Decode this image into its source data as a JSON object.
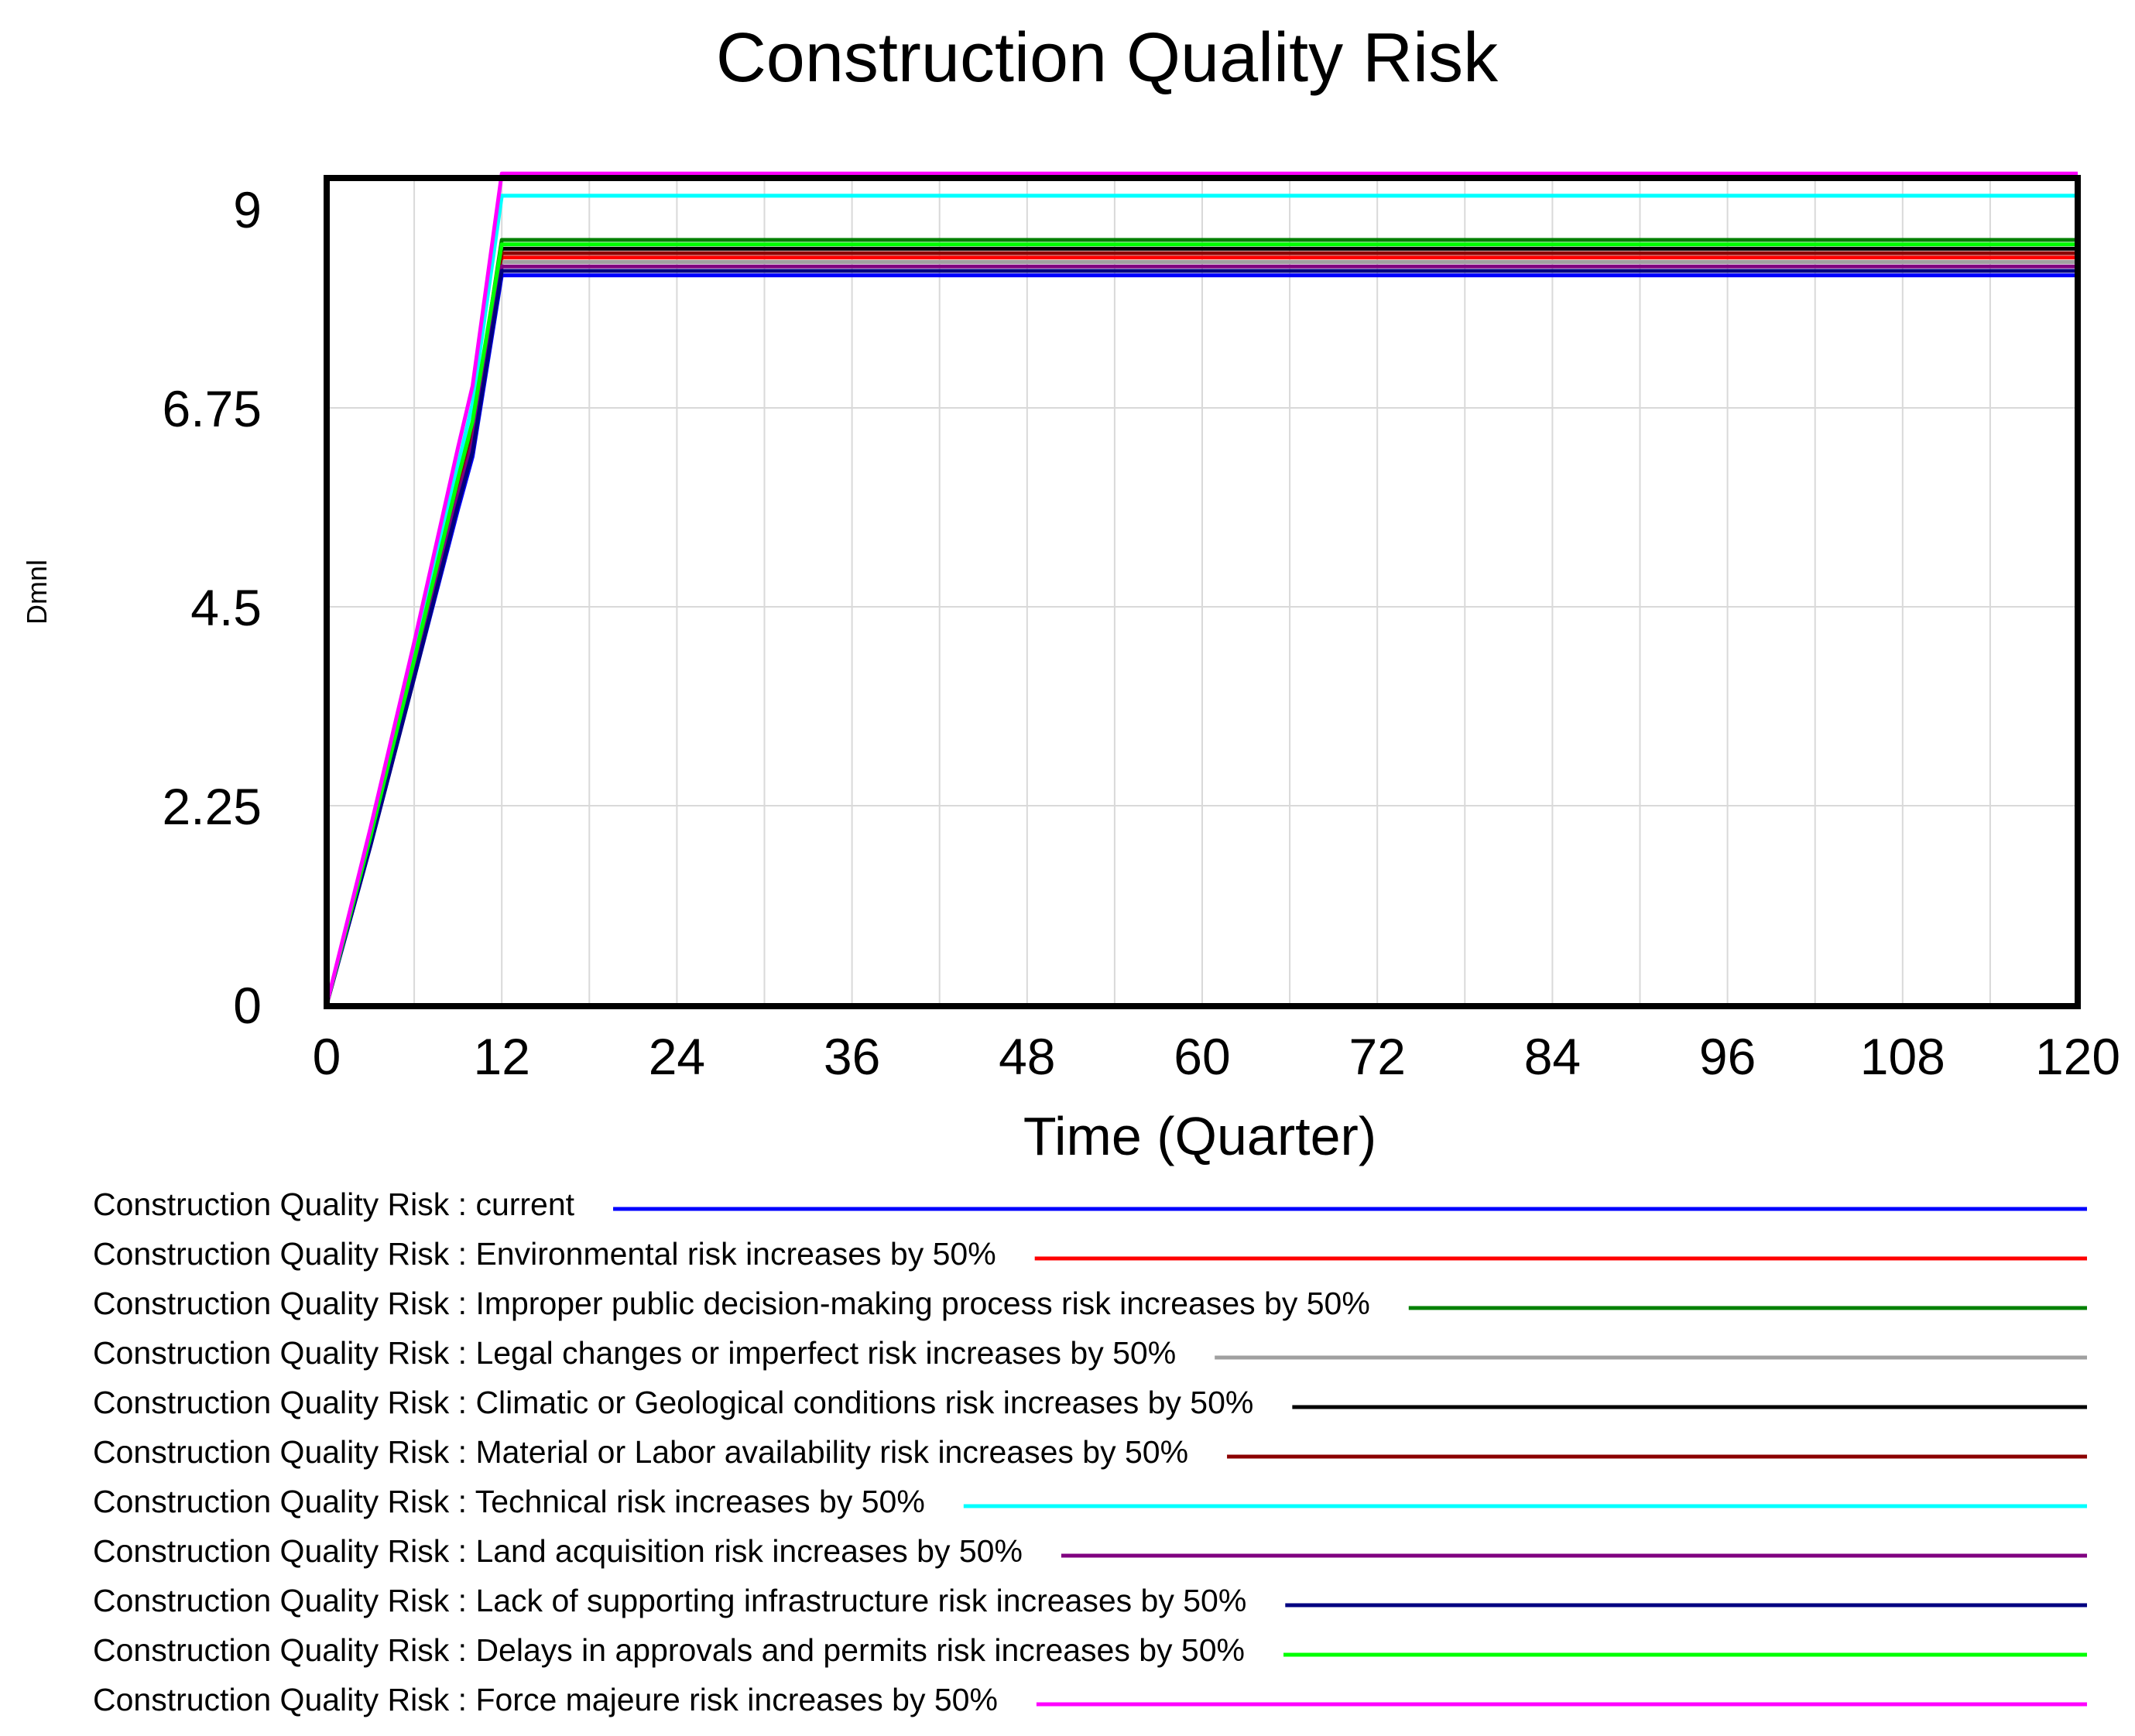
{
  "chart_data": {
    "type": "line",
    "title": "Construction Quality Risk",
    "xlabel": "Time (Quarter)",
    "ylabel": "Dmnl",
    "xlim": [
      0,
      120
    ],
    "ylim": [
      0,
      9
    ],
    "x_ticks": [
      0,
      12,
      24,
      36,
      48,
      60,
      72,
      84,
      96,
      108,
      120
    ],
    "y_ticks": [
      0,
      2.25,
      4.5,
      6.75,
      9
    ],
    "y_tick_labels": [
      "0",
      "2.25",
      "4.5",
      "6.75",
      "9"
    ],
    "x": [
      0,
      3,
      6,
      9,
      10,
      12,
      120
    ],
    "series": [
      {
        "name": "Construction Quality Risk : current",
        "color": "#0000ff",
        "values": [
          0,
          1.8,
          3.7,
          5.6,
          6.2,
          8.25,
          8.25
        ]
      },
      {
        "name": "Construction Quality Risk : Environmental risk increases by 50%",
        "color": "#ff0000",
        "values": [
          0,
          1.85,
          3.8,
          5.75,
          6.35,
          8.45,
          8.45
        ]
      },
      {
        "name": "Construction Quality Risk : Improper public decision-making process risk increases by 50%",
        "color": "#008000",
        "values": [
          0,
          1.9,
          3.9,
          5.9,
          6.5,
          8.65,
          8.65
        ]
      },
      {
        "name": "Construction Quality Risk : Legal changes or imperfect risk increases by 50%",
        "color": "#a0a0a0",
        "values": [
          0,
          1.85,
          3.8,
          5.75,
          6.35,
          8.4,
          8.4
        ]
      },
      {
        "name": "Construction Quality Risk : Climatic or Geological conditions risk increases by 50%",
        "color": "#000000",
        "values": [
          0,
          1.85,
          3.8,
          5.8,
          6.4,
          8.55,
          8.55
        ]
      },
      {
        "name": "Construction Quality Risk : Material or Labor availability risk increases by 50%",
        "color": "#8b0000",
        "values": [
          0,
          1.85,
          3.85,
          5.8,
          6.4,
          8.5,
          8.5
        ]
      },
      {
        "name": "Construction Quality Risk : Technical risk increases by 50%",
        "color": "#00ffff",
        "values": [
          0,
          1.95,
          4.0,
          6.1,
          6.8,
          9.15,
          9.15
        ]
      },
      {
        "name": "Construction Quality Risk : Land acquisition risk increases by 50%",
        "color": "#800080",
        "values": [
          0,
          1.85,
          3.8,
          5.75,
          6.35,
          8.35,
          8.35
        ]
      },
      {
        "name": "Construction Quality Risk : Lack of supporting infrastructure risk increases by 50%",
        "color": "#000080",
        "values": [
          0,
          1.8,
          3.7,
          5.65,
          6.25,
          8.3,
          8.3
        ]
      },
      {
        "name": "Construction Quality Risk : Delays in approvals and permits risk increases by 50%",
        "color": "#00ff00",
        "values": [
          0,
          1.9,
          3.9,
          5.95,
          6.6,
          8.6,
          8.6
        ]
      },
      {
        "name": "Construction Quality Risk : Force majeure risk increases by 50%",
        "color": "#ff00ff",
        "values": [
          0,
          2.0,
          4.1,
          6.3,
          7.0,
          9.4,
          9.4
        ]
      }
    ]
  }
}
